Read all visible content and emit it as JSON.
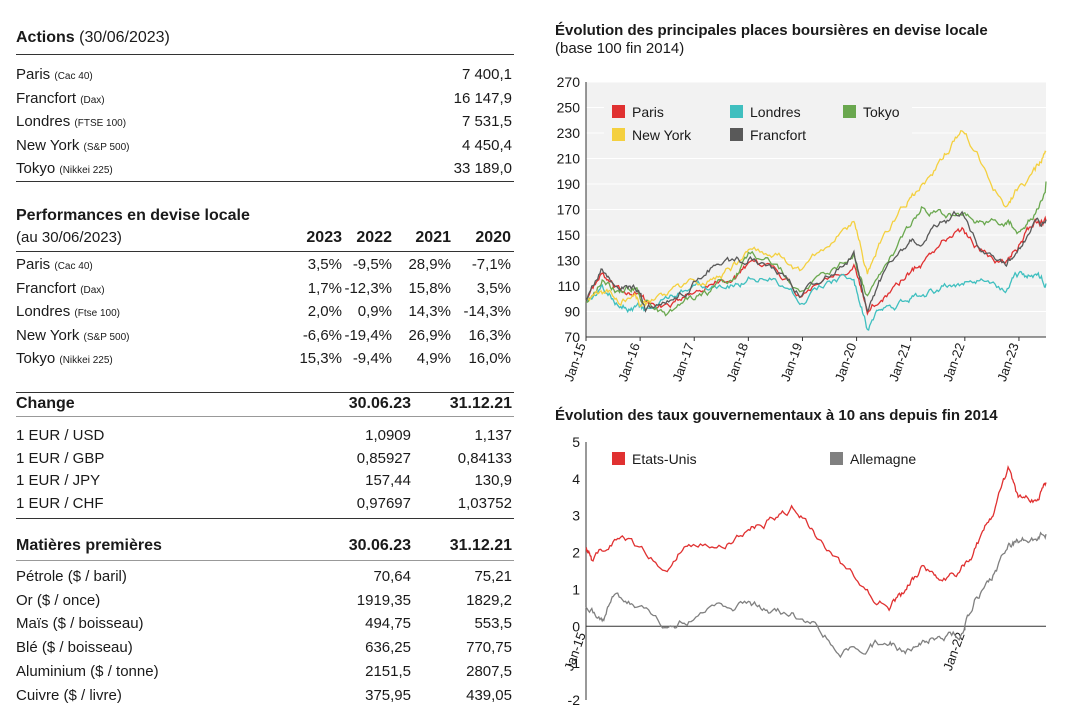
{
  "actions": {
    "title": "Actions",
    "date": "(30/06/2023)",
    "rows": [
      {
        "name": "Paris",
        "index": "(Cac 40)",
        "value": "7 400,1"
      },
      {
        "name": "Francfort",
        "index": "(Dax)",
        "value": "16 147,9"
      },
      {
        "name": "Londres",
        "index": "(FTSE 100)",
        "value": "7 531,5"
      },
      {
        "name": "New York",
        "index": "(S&P 500)",
        "value": "4 450,4"
      },
      {
        "name": "Tokyo",
        "index": "(Nikkei 225)",
        "value": "33 189,0"
      }
    ]
  },
  "performances": {
    "title": "Performances en devise locale",
    "subtitle": "(au 30/06/2023)",
    "columns": [
      "2023",
      "2022",
      "2021",
      "2020"
    ],
    "rows": [
      {
        "name": "Paris",
        "index": "(Cac 40)",
        "values": [
          "3,5%",
          "-9,5%",
          "28,9%",
          "-7,1%"
        ]
      },
      {
        "name": "Francfort",
        "index": "(Dax)",
        "values": [
          "1,7%",
          "-12,3%",
          "15,8%",
          "3,5%"
        ]
      },
      {
        "name": "Londres",
        "index": "(Ftse 100)",
        "values": [
          "2,0%",
          "0,9%",
          "14,3%",
          "-14,3%"
        ]
      },
      {
        "name": "New York",
        "index": "(S&P 500)",
        "values": [
          "-6,6%",
          "-19,4%",
          "26,9%",
          "16,3%"
        ]
      },
      {
        "name": "Tokyo",
        "index": "(Nikkei 225)",
        "values": [
          "15,3%",
          "-9,4%",
          "4,9%",
          "16,0%"
        ]
      }
    ]
  },
  "change": {
    "title": "Change",
    "columns": [
      "30.06.23",
      "31.12.21"
    ],
    "rows": [
      {
        "name": "1 EUR / USD",
        "values": [
          "1,0909",
          "1,137"
        ]
      },
      {
        "name": "1 EUR / GBP",
        "values": [
          "0,85927",
          "0,84133"
        ]
      },
      {
        "name": "1 EUR / JPY",
        "values": [
          "157,44",
          "130,9"
        ]
      },
      {
        "name": "1 EUR / CHF",
        "values": [
          "0,97697",
          "1,03752"
        ]
      }
    ]
  },
  "matieres": {
    "title": "Matières premières",
    "columns": [
      "30.06.23",
      "31.12.21"
    ],
    "rows": [
      {
        "name": "Pétrole ($ / baril)",
        "values": [
          "70,64",
          "75,21"
        ]
      },
      {
        "name": "Or ($ / once)",
        "values": [
          "1919,35",
          "1829,2"
        ]
      },
      {
        "name": "Maïs ($ / boisseau)",
        "values": [
          "494,75",
          "553,5"
        ]
      },
      {
        "name": "Blé ($ / boisseau)",
        "values": [
          "636,25",
          "770,75"
        ]
      },
      {
        "name": "Aluminium ($ / tonne)",
        "values": [
          "2151,5",
          "2807,5"
        ]
      },
      {
        "name": "Cuivre ($ / livre)",
        "values": [
          "375,95",
          "439,05"
        ]
      }
    ]
  },
  "chart_data": [
    {
      "type": "line",
      "title": "Évolution des principales places boursières en devise locale",
      "subtitle": "(base 100 fin 2014)",
      "ylim": [
        70,
        270
      ],
      "yticks": [
        70,
        90,
        110,
        130,
        150,
        170,
        190,
        210,
        230,
        250,
        270
      ],
      "xlim": [
        2015.0,
        2023.5
      ],
      "xticks": [
        {
          "label": "Jan-15",
          "x": 2015.0
        },
        {
          "label": "Jan-16",
          "x": 2016.0
        },
        {
          "label": "Jan-17",
          "x": 2017.0
        },
        {
          "label": "Jan-18",
          "x": 2018.0
        },
        {
          "label": "Jan-19",
          "x": 2019.0
        },
        {
          "label": "Jan-20",
          "x": 2020.0
        },
        {
          "label": "Jan-21",
          "x": 2021.0
        },
        {
          "label": "Jan-22",
          "x": 2022.0
        },
        {
          "label": "Jan-23",
          "x": 2023.0
        }
      ],
      "grid": true,
      "legend": "top-left",
      "series": [
        {
          "name": "Paris",
          "color": "#e03131",
          "x": [
            2015.0,
            2015.3,
            2015.6,
            2015.9,
            2016.1,
            2016.5,
            2016.9,
            2017.3,
            2017.7,
            2018.0,
            2018.5,
            2018.95,
            2019.5,
            2019.95,
            2020.2,
            2020.5,
            2020.9,
            2021.2,
            2021.6,
            2021.95,
            2022.3,
            2022.75,
            2023.0,
            2023.3,
            2023.5
          ],
          "y": [
            100,
            118,
            103,
            108,
            96,
            93,
            103,
            115,
            116,
            122,
            124,
            105,
            120,
            130,
            88,
            103,
            118,
            128,
            146,
            154,
            138,
            128,
            142,
            160,
            161
          ]
        },
        {
          "name": "Londres",
          "color": "#3fbfbf",
          "x": [
            2015.0,
            2015.3,
            2015.6,
            2015.9,
            2016.1,
            2016.5,
            2016.9,
            2017.3,
            2017.7,
            2018.0,
            2018.5,
            2018.95,
            2019.5,
            2019.95,
            2020.2,
            2020.5,
            2020.9,
            2021.2,
            2021.6,
            2021.95,
            2022.3,
            2022.75,
            2023.0,
            2023.3,
            2023.5
          ],
          "y": [
            100,
            108,
            96,
            95,
            90,
            97,
            108,
            114,
            113,
            117,
            118,
            100,
            113,
            117,
            78,
            92,
            96,
            104,
            110,
            112,
            114,
            108,
            118,
            118,
            112
          ]
        },
        {
          "name": "Tokyo",
          "color": "#6aa84f",
          "x": [
            2015.0,
            2015.3,
            2015.6,
            2015.9,
            2016.1,
            2016.5,
            2016.9,
            2017.3,
            2017.7,
            2018.0,
            2018.5,
            2018.95,
            2019.5,
            2019.95,
            2020.2,
            2020.5,
            2020.9,
            2021.2,
            2021.6,
            2021.95,
            2022.3,
            2022.75,
            2023.0,
            2023.3,
            2023.5
          ],
          "y": [
            100,
            118,
            105,
            108,
            95,
            87,
            100,
            106,
            116,
            135,
            127,
            110,
            118,
            137,
            100,
            124,
            150,
            170,
            165,
            165,
            158,
            160,
            155,
            170,
            192
          ]
        },
        {
          "name": "New York",
          "color": "#f4d03f",
          "x": [
            2015.0,
            2015.3,
            2015.6,
            2015.9,
            2016.1,
            2016.5,
            2016.9,
            2017.3,
            2017.7,
            2018.0,
            2018.5,
            2018.95,
            2019.5,
            2019.95,
            2020.2,
            2020.5,
            2020.9,
            2021.2,
            2021.6,
            2021.95,
            2022.3,
            2022.75,
            2023.0,
            2023.3,
            2023.5
          ],
          "y": [
            100,
            104,
            99,
            100,
            92,
            103,
            110,
            116,
            124,
            135,
            136,
            122,
            143,
            160,
            120,
            150,
            175,
            190,
            210,
            233,
            205,
            175,
            190,
            200,
            215
          ]
        },
        {
          "name": "Francfort",
          "color": "#595959",
          "x": [
            2015.0,
            2015.3,
            2015.6,
            2015.9,
            2016.1,
            2016.5,
            2016.9,
            2017.3,
            2017.7,
            2018.0,
            2018.5,
            2018.95,
            2019.5,
            2019.95,
            2020.2,
            2020.5,
            2020.9,
            2021.2,
            2021.6,
            2021.95,
            2022.3,
            2022.75,
            2023.0,
            2023.3,
            2023.5
          ],
          "y": [
            100,
            122,
            108,
            108,
            92,
            95,
            110,
            125,
            128,
            135,
            125,
            105,
            120,
            137,
            92,
            120,
            140,
            148,
            162,
            165,
            140,
            125,
            145,
            157,
            162
          ]
        }
      ]
    },
    {
      "type": "line",
      "title": "Évolution des taux gouvernementaux à 10 ans depuis fin 2014",
      "ylim": [
        -2,
        5
      ],
      "yticks": [
        -2,
        -1,
        0,
        1,
        2,
        3,
        4,
        5
      ],
      "xlim": [
        2015.0,
        2023.5
      ],
      "xticks": [
        {
          "label": "Jan-15",
          "x": 2015.0
        },
        {
          "label": "Jan-22",
          "x": 2022.0
        }
      ],
      "grid": false,
      "zero_line": true,
      "legend": "top-left",
      "series": [
        {
          "name": "Etats-Unis",
          "color": "#e03131",
          "x": [
            2015.0,
            2015.1,
            2015.5,
            2015.9,
            2016.5,
            2016.9,
            2017.5,
            2018.0,
            2018.4,
            2018.8,
            2019.2,
            2019.7,
            2020.2,
            2020.6,
            2020.9,
            2021.2,
            2021.5,
            2021.9,
            2022.2,
            2022.5,
            2022.8,
            2023.0,
            2023.3,
            2023.5
          ],
          "y": [
            2.2,
            1.8,
            2.3,
            2.2,
            1.5,
            2.4,
            2.3,
            2.6,
            2.9,
            3.2,
            2.6,
            1.6,
            0.9,
            0.6,
            0.9,
            1.6,
            1.3,
            1.5,
            2.2,
            3.0,
            4.1,
            3.5,
            3.5,
            3.9
          ]
        },
        {
          "name": "Allemagne",
          "color": "#808080",
          "x": [
            2015.0,
            2015.3,
            2015.5,
            2015.9,
            2016.5,
            2016.9,
            2017.5,
            2018.0,
            2018.4,
            2018.8,
            2019.2,
            2019.7,
            2020.2,
            2020.6,
            2020.9,
            2021.2,
            2021.5,
            2021.9,
            2022.2,
            2022.5,
            2022.8,
            2023.0,
            2023.3,
            2023.5
          ],
          "y": [
            0.6,
            0.1,
            0.8,
            0.6,
            -0.1,
            0.2,
            0.5,
            0.6,
            0.4,
            0.3,
            0.1,
            -0.6,
            -0.5,
            -0.4,
            -0.6,
            -0.3,
            -0.3,
            -0.2,
            0.8,
            1.3,
            2.2,
            2.3,
            2.4,
            2.5
          ]
        }
      ]
    }
  ]
}
